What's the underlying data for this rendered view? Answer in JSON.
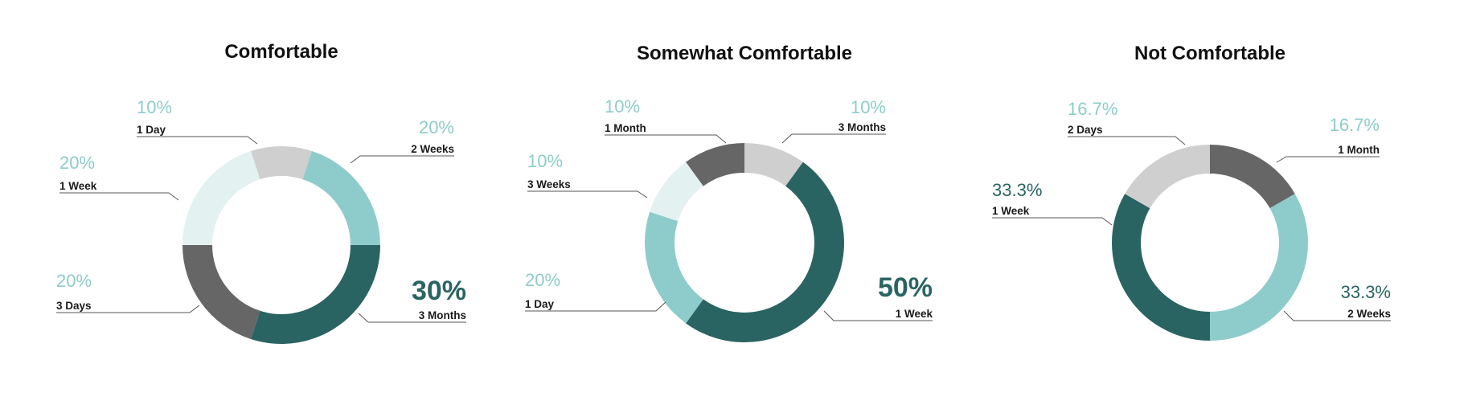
{
  "colors": {
    "1 Day": "#cfcfcf",
    "2 Weeks": "#8ecccb",
    "3 Months": "#2a6462",
    "3 Days": "#666666",
    "1 Week": "#e4f1f1",
    "label_light": "#8ecccb",
    "label_dark": "#2a6462"
  },
  "chart_data": [
    {
      "type": "pie",
      "title": "Comfortable",
      "slices": [
        {
          "label": "1 Day",
          "value": 10,
          "pct_label": "10%",
          "color": "#cfcfcf",
          "text_color": "#8ecccb",
          "big": false
        },
        {
          "label": "2 Weeks",
          "value": 20,
          "pct_label": "20%",
          "color": "#8ecccb",
          "text_color": "#8ecccb",
          "big": false
        },
        {
          "label": "3 Months",
          "value": 30,
          "pct_label": "30%",
          "color": "#2a6462",
          "text_color": "#2a6462",
          "big": true
        },
        {
          "label": "3 Days",
          "value": 20,
          "pct_label": "20%",
          "color": "#666666",
          "text_color": "#8ecccb",
          "big": false
        },
        {
          "label": "1 Week",
          "value": 20,
          "pct_label": "20%",
          "color": "#e4f1f1",
          "text_color": "#8ecccb",
          "big": false
        }
      ]
    },
    {
      "type": "pie",
      "title": "Somewhat Comfortable",
      "slices": [
        {
          "label": "3 Months",
          "value": 10,
          "pct_label": "10%",
          "color": "#cfcfcf",
          "text_color": "#8ecccb",
          "big": false
        },
        {
          "label": "1 Week",
          "value": 50,
          "pct_label": "50%",
          "color": "#2a6462",
          "text_color": "#2a6462",
          "big": true
        },
        {
          "label": "1 Day",
          "value": 20,
          "pct_label": "20%",
          "color": "#8ecccb",
          "text_color": "#8ecccb",
          "big": false
        },
        {
          "label": "3 Weeks",
          "value": 10,
          "pct_label": "10%",
          "color": "#e4f1f1",
          "text_color": "#8ecccb",
          "big": false
        },
        {
          "label": "1 Month",
          "value": 10,
          "pct_label": "10%",
          "color": "#666666",
          "text_color": "#8ecccb",
          "big": false
        }
      ]
    },
    {
      "type": "pie",
      "title": "Not Comfortable",
      "slices": [
        {
          "label": "1 Month",
          "value": 16.7,
          "pct_label": "16.7%",
          "color": "#666666",
          "text_color": "#8ecccb",
          "big": false
        },
        {
          "label": "2 Weeks",
          "value": 33.3,
          "pct_label": "33.3%",
          "color": "#8ecccb",
          "text_color": "#2a6462",
          "big": false
        },
        {
          "label": "1 Week",
          "value": 33.3,
          "pct_label": "33.3%",
          "color": "#2a6462",
          "text_color": "#2a6462",
          "big": false
        },
        {
          "label": "2  Days",
          "value": 16.7,
          "pct_label": "16.7%",
          "color": "#cfcfcf",
          "text_color": "#8ecccb",
          "big": false
        }
      ]
    }
  ]
}
